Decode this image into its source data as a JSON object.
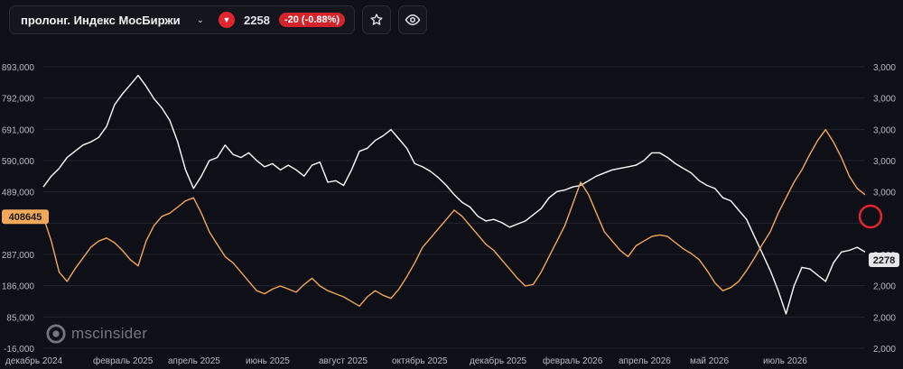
{
  "toolbar": {
    "instrument": "пролонг. Индекс МосБиржи",
    "price": "2258",
    "change": "-20 (-0.88%)",
    "icons": [
      "chevron-down-icon",
      "triangle-down-icon",
      "star-icon",
      "eye-icon"
    ]
  },
  "watermark": "mscinsider",
  "colors": {
    "background": "#0f0f17",
    "oi_line": "#ffffff",
    "price_line": "#f0a85a",
    "badge_red": "#d3242b"
  },
  "chart_data": {
    "type": "line",
    "left_axis_ticks": [
      "893,000",
      "792,000",
      "691,000",
      "590,000",
      "489,000",
      "287,000",
      "186,000",
      "85,000",
      "-16,000"
    ],
    "right_axis_ticks": [
      "3,000",
      "3,000",
      "3,000",
      "3,000",
      "3,000",
      "2,000",
      "2,000",
      "2,000",
      "2,000"
    ],
    "x_ticks": [
      "декабрь 2024",
      "февраль 2025",
      "апрель 2025",
      "июнь 2025",
      "август 2025",
      "октябрь 2025",
      "декабрь 2025",
      "февраль 2026",
      "апрель 2026",
      "май 2026",
      "июль 2026"
    ],
    "left_ylim": [
      -16000,
      893000
    ],
    "left_marker": "408645",
    "right_marker": "2278",
    "series": [
      {
        "values": [
          505000,
          540000,
          565000,
          600000,
          620000,
          640000,
          650000,
          665000,
          700000,
          770000,
          805000,
          835000,
          865000,
          830000,
          790000,
          760000,
          720000,
          650000,
          560000,
          500000,
          540000,
          590000,
          600000,
          640000,
          610000,
          600000,
          615000,
          590000,
          570000,
          580000,
          560000,
          575000,
          560000,
          540000,
          575000,
          585000,
          520000,
          525000,
          510000,
          560000,
          620000,
          630000,
          655000,
          670000,
          690000,
          660000,
          630000,
          580000,
          570000,
          555000,
          535000,
          510000,
          480000,
          455000,
          440000,
          410000,
          395000,
          400000,
          390000,
          375000,
          385000,
          395000,
          415000,
          435000,
          470000,
          490000,
          495000,
          505000,
          510000,
          525000,
          540000,
          550000,
          560000,
          565000,
          570000,
          575000,
          590000,
          615000,
          615000,
          600000,
          580000,
          565000,
          550000,
          525000,
          510000,
          500000,
          470000,
          460000,
          430000,
          400000,
          345000,
          290000,
          235000,
          170000,
          95000,
          185000,
          245000,
          240000,
          220000,
          200000,
          260000,
          295000,
          300000,
          310000,
          295000
        ]
      },
      {
        "values": [
          408645,
          330000,
          230000,
          200000,
          240000,
          275000,
          310000,
          330000,
          340000,
          325000,
          300000,
          270000,
          250000,
          330000,
          380000,
          410000,
          420000,
          440000,
          460000,
          470000,
          420000,
          360000,
          320000,
          280000,
          260000,
          230000,
          200000,
          170000,
          160000,
          175000,
          185000,
          175000,
          165000,
          190000,
          210000,
          185000,
          170000,
          160000,
          150000,
          135000,
          120000,
          150000,
          170000,
          155000,
          145000,
          175000,
          215000,
          260000,
          310000,
          340000,
          370000,
          400000,
          430000,
          410000,
          380000,
          350000,
          320000,
          300000,
          270000,
          240000,
          210000,
          185000,
          190000,
          230000,
          280000,
          330000,
          380000,
          450000,
          520000,
          480000,
          420000,
          360000,
          330000,
          300000,
          280000,
          315000,
          330000,
          345000,
          350000,
          345000,
          325000,
          305000,
          290000,
          270000,
          235000,
          195000,
          170000,
          180000,
          200000,
          235000,
          275000,
          320000,
          360000,
          420000,
          470000,
          520000,
          560000,
          610000,
          655000,
          690000,
          650000,
          600000,
          540000,
          500000,
          480000
        ]
      }
    ]
  }
}
